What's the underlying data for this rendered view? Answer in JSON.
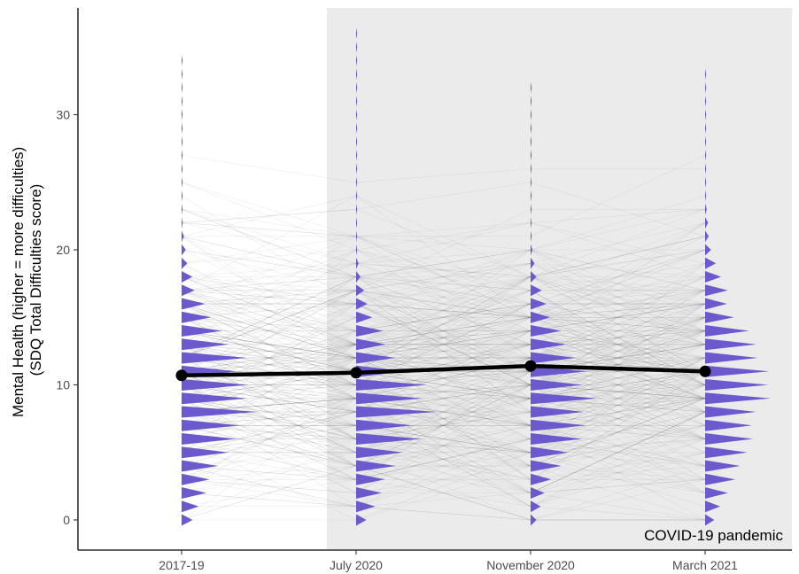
{
  "chart_data": {
    "type": "line",
    "title": "",
    "ylabel_line1": "Mental Health (higher = more difficulties)",
    "ylabel_line2": "(SDQ Total Difficulties score)",
    "categories": [
      "2017-19",
      "July 2020",
      "November 2020",
      "March 2021"
    ],
    "yticks": [
      "0",
      "10",
      "20",
      "30"
    ],
    "ylim": [
      -2.3,
      38
    ],
    "series": [
      {
        "values": [
          10.7,
          10.9,
          11.4,
          11.0
        ]
      }
    ],
    "shaded_region": {
      "from_category": "July 2020",
      "label": "COVID-19 pandemic",
      "color": "#ebebeb"
    },
    "per_wave_max_score": [
      34,
      36,
      32,
      33
    ],
    "distribution_color": "#6a5acd",
    "mean_line_color": "#000000",
    "grid": false
  }
}
